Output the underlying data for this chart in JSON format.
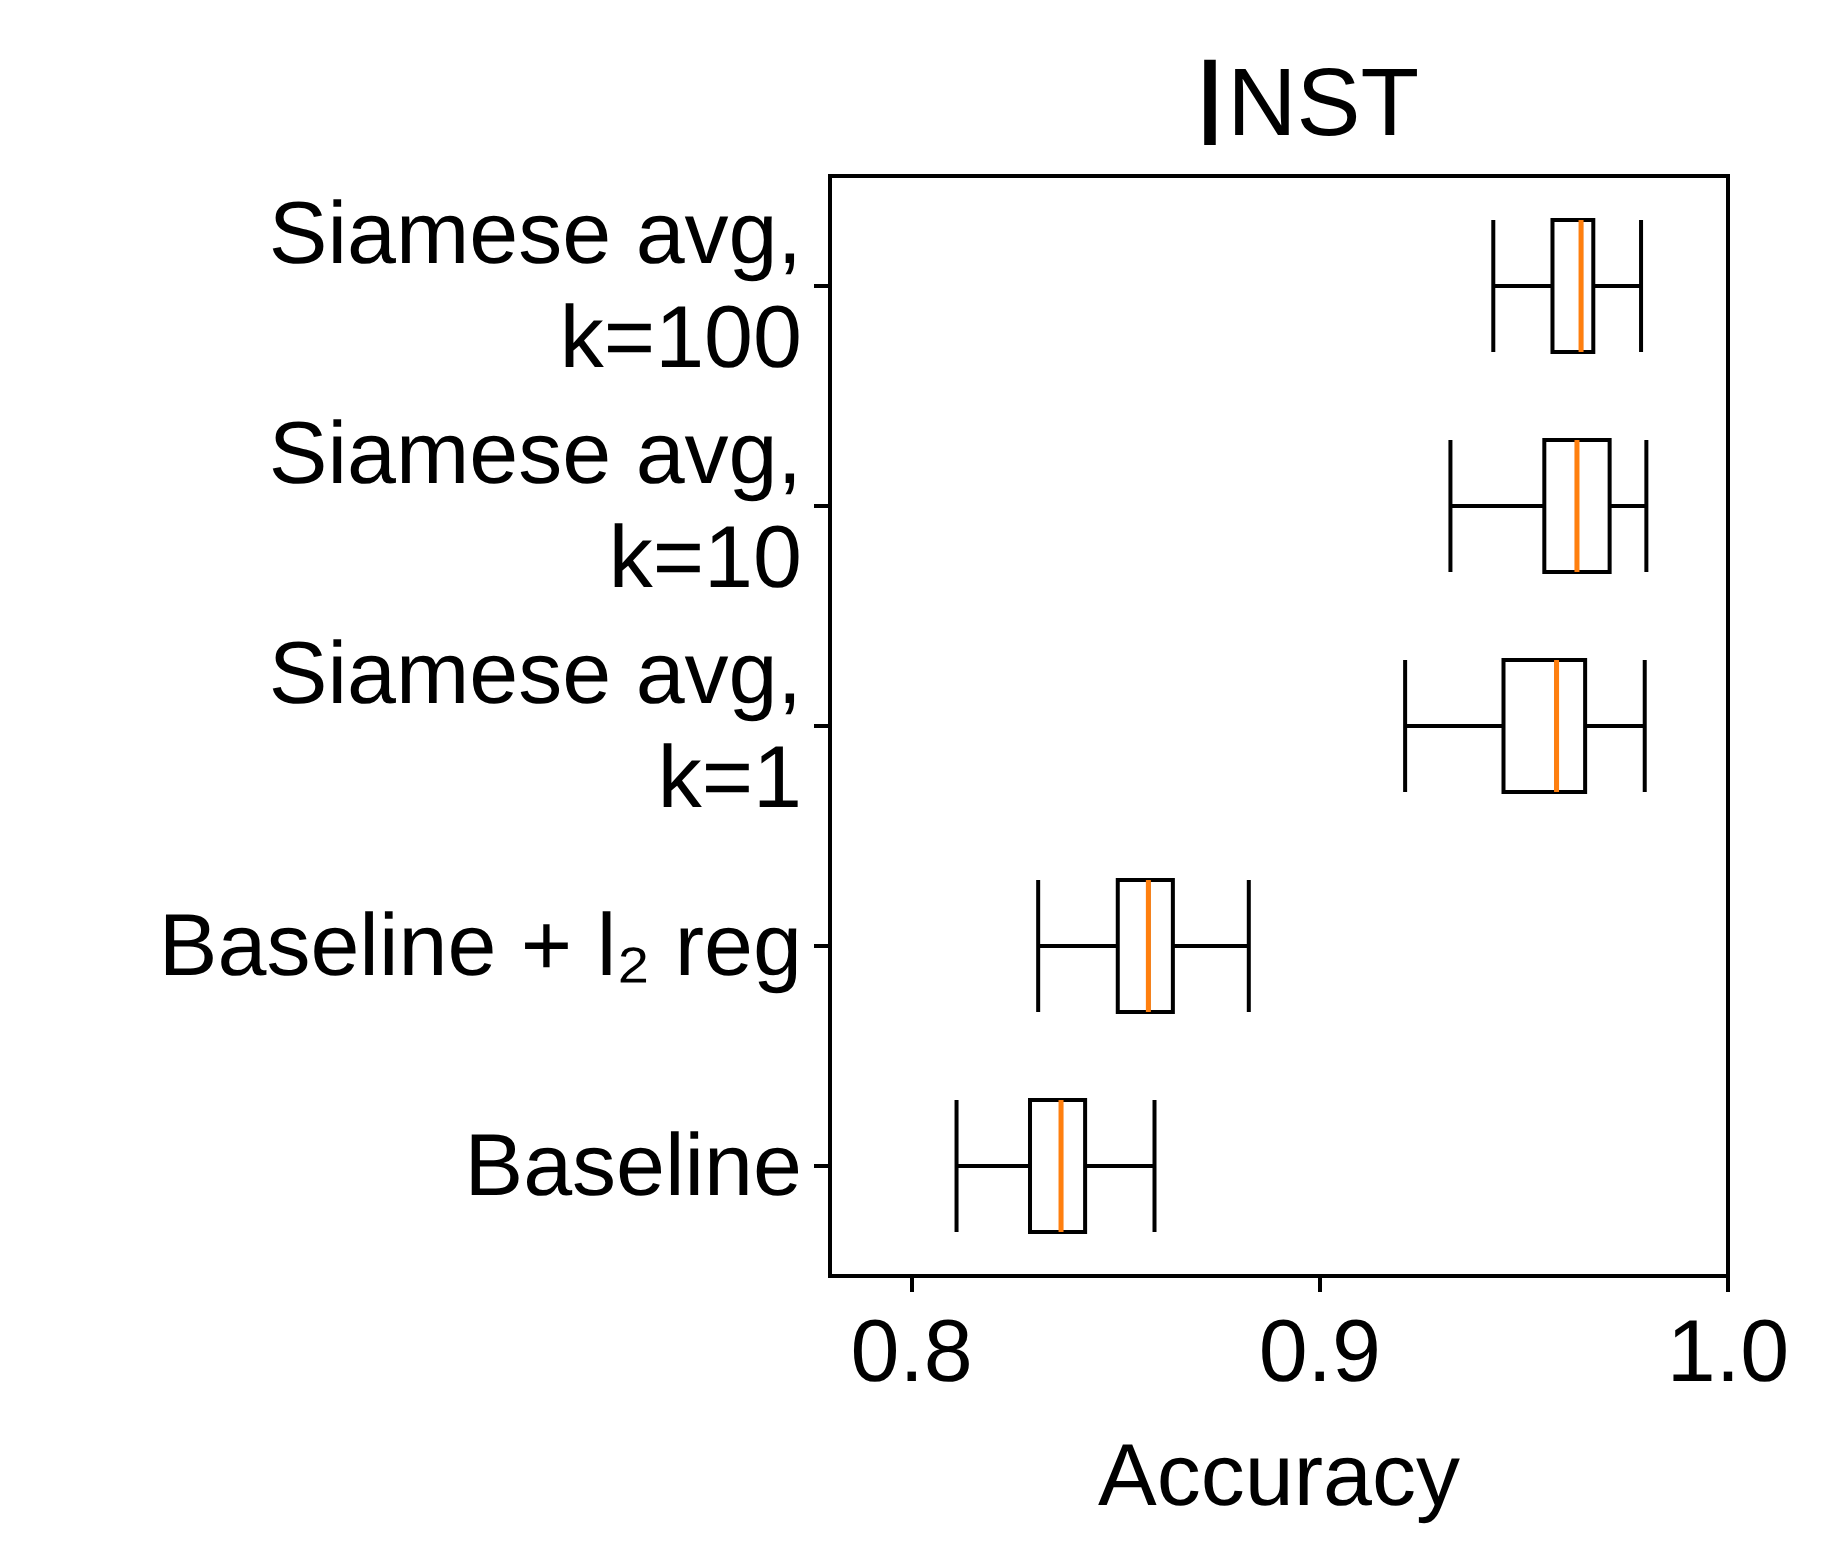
{
  "chart_data": {
    "type": "box",
    "title": "INST",
    "xlabel": "Accuracy",
    "orientation": "horizontal",
    "categories": [
      "Siamese avg,\nk=100",
      "Siamese avg,\nk=10",
      "Siamese avg,\nk=1",
      "Baseline + l₂ reg",
      "Baseline"
    ],
    "boxes": [
      {
        "low": 0.9425,
        "q1": 0.957,
        "median": 0.964,
        "q3": 0.967,
        "high": 0.9787
      },
      {
        "low": 0.932,
        "q1": 0.955,
        "median": 0.963,
        "q3": 0.971,
        "high": 0.98
      },
      {
        "low": 0.9209,
        "q1": 0.945,
        "median": 0.958,
        "q3": 0.965,
        "high": 0.9796
      },
      {
        "low": 0.831,
        "q1": 0.8505,
        "median": 0.858,
        "q3": 0.864,
        "high": 0.8826
      },
      {
        "low": 0.811,
        "q1": 0.829,
        "median": 0.8366,
        "q3": 0.8425,
        "high": 0.8595
      }
    ],
    "color": "#000000",
    "xlim": [
      0.78,
      1.0
    ],
    "xticks": [
      {
        "value": 0.8,
        "label": "0.8"
      },
      {
        "value": 0.9,
        "label": "0.9"
      },
      {
        "value": 1.0,
        "label": "1.0"
      }
    ],
    "grid": false
  }
}
